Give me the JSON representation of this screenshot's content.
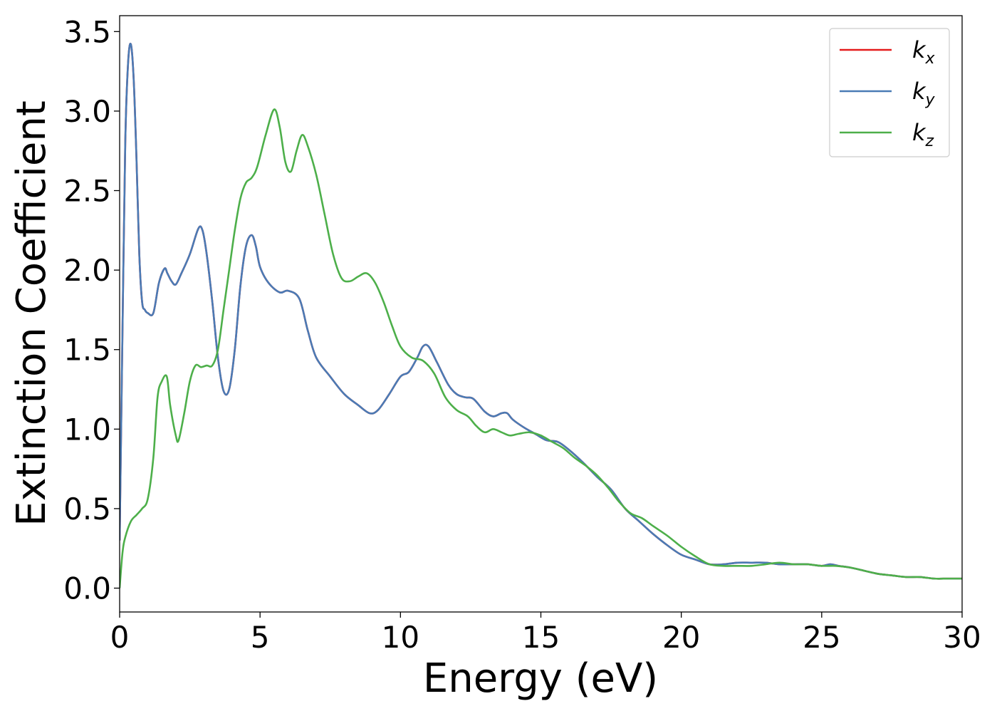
{
  "chart_data": {
    "type": "line",
    "title": "",
    "xlabel": "Energy (eV)",
    "ylabel": "Extinction Coefficient",
    "xlim": [
      0,
      30
    ],
    "ylim": [
      -0.15,
      3.6
    ],
    "xticks": [
      0,
      5,
      10,
      15,
      20,
      25,
      30
    ],
    "xtick_labels": [
      "0",
      "5",
      "10",
      "15",
      "20",
      "25",
      "30"
    ],
    "yticks": [
      0.0,
      0.5,
      1.0,
      1.5,
      2.0,
      2.5,
      3.0,
      3.5
    ],
    "ytick_labels": [
      "0.0",
      "0.5",
      "1.0",
      "1.5",
      "2.0",
      "2.5",
      "3.0",
      "3.5"
    ],
    "grid": false,
    "legend_position": "top-right",
    "series": [
      {
        "name": "k_x",
        "label_main": "k",
        "label_sub": "x",
        "color": "#e41a1c",
        "x": [
          0,
          0.1,
          0.2,
          0.3,
          0.4,
          0.5,
          0.6,
          0.7,
          0.8,
          0.9,
          1.0,
          1.2,
          1.4,
          1.6,
          1.7,
          1.85,
          2.0,
          2.2,
          2.5,
          2.8,
          2.95,
          3.1,
          3.3,
          3.5,
          3.7,
          3.9,
          4.1,
          4.3,
          4.5,
          4.7,
          4.85,
          5.0,
          5.3,
          5.7,
          6.0,
          6.4,
          6.7,
          7.0,
          7.5,
          8.0,
          8.5,
          8.9,
          9.2,
          9.6,
          10.0,
          10.3,
          10.6,
          10.8,
          11.0,
          11.3,
          11.7,
          12.0,
          12.3,
          12.6,
          13.0,
          13.3,
          13.6,
          13.8,
          14.0,
          14.4,
          14.8,
          15.2,
          15.6,
          16.0,
          16.5,
          17.0,
          17.5,
          18.0,
          18.5,
          19.0,
          19.5,
          20.0,
          20.5,
          21.0,
          21.5,
          22.0,
          22.5,
          23.0,
          23.5,
          24.0,
          24.5,
          25.0,
          25.3,
          25.6,
          26.0,
          26.5,
          27.0,
          27.5,
          28.0,
          28.5,
          29.0,
          29.5,
          30.0
        ],
        "y": [
          0.3,
          1.6,
          2.8,
          3.3,
          3.42,
          3.2,
          2.7,
          2.1,
          1.8,
          1.75,
          1.73,
          1.73,
          1.92,
          2.01,
          1.98,
          1.93,
          1.91,
          1.98,
          2.1,
          2.26,
          2.25,
          2.1,
          1.8,
          1.45,
          1.24,
          1.25,
          1.5,
          1.9,
          2.15,
          2.22,
          2.15,
          2.02,
          1.92,
          1.86,
          1.87,
          1.82,
          1.62,
          1.45,
          1.33,
          1.22,
          1.15,
          1.1,
          1.12,
          1.22,
          1.33,
          1.36,
          1.45,
          1.52,
          1.52,
          1.42,
          1.28,
          1.22,
          1.2,
          1.19,
          1.11,
          1.08,
          1.1,
          1.1,
          1.06,
          1.01,
          0.97,
          0.93,
          0.92,
          0.87,
          0.79,
          0.7,
          0.62,
          0.5,
          0.42,
          0.34,
          0.27,
          0.21,
          0.18,
          0.15,
          0.15,
          0.16,
          0.16,
          0.16,
          0.15,
          0.15,
          0.15,
          0.14,
          0.15,
          0.14,
          0.13,
          0.11,
          0.09,
          0.08,
          0.07,
          0.07,
          0.06,
          0.06,
          0.06
        ]
      },
      {
        "name": "k_y",
        "label_main": "k",
        "label_sub": "y",
        "color": "#4a7bb5",
        "x": [
          0,
          0.1,
          0.2,
          0.3,
          0.4,
          0.5,
          0.6,
          0.7,
          0.8,
          0.9,
          1.0,
          1.2,
          1.4,
          1.6,
          1.7,
          1.85,
          2.0,
          2.2,
          2.5,
          2.8,
          2.95,
          3.1,
          3.3,
          3.5,
          3.7,
          3.9,
          4.1,
          4.3,
          4.5,
          4.7,
          4.85,
          5.0,
          5.3,
          5.7,
          6.0,
          6.4,
          6.7,
          7.0,
          7.5,
          8.0,
          8.5,
          8.9,
          9.2,
          9.6,
          10.0,
          10.3,
          10.6,
          10.8,
          11.0,
          11.3,
          11.7,
          12.0,
          12.3,
          12.6,
          13.0,
          13.3,
          13.6,
          13.8,
          14.0,
          14.4,
          14.8,
          15.2,
          15.6,
          16.0,
          16.5,
          17.0,
          17.5,
          18.0,
          18.5,
          19.0,
          19.5,
          20.0,
          20.5,
          21.0,
          21.5,
          22.0,
          22.5,
          23.0,
          23.5,
          24.0,
          24.5,
          25.0,
          25.3,
          25.6,
          26.0,
          26.5,
          27.0,
          27.5,
          28.0,
          28.5,
          29.0,
          29.5,
          30.0
        ],
        "y": [
          0.3,
          1.6,
          2.8,
          3.3,
          3.42,
          3.2,
          2.7,
          2.1,
          1.8,
          1.75,
          1.73,
          1.73,
          1.92,
          2.01,
          1.98,
          1.93,
          1.91,
          1.98,
          2.1,
          2.26,
          2.25,
          2.1,
          1.8,
          1.45,
          1.24,
          1.25,
          1.5,
          1.9,
          2.15,
          2.22,
          2.15,
          2.02,
          1.92,
          1.86,
          1.87,
          1.82,
          1.62,
          1.45,
          1.33,
          1.22,
          1.15,
          1.1,
          1.12,
          1.22,
          1.33,
          1.36,
          1.45,
          1.52,
          1.52,
          1.42,
          1.28,
          1.22,
          1.2,
          1.19,
          1.11,
          1.08,
          1.1,
          1.1,
          1.06,
          1.01,
          0.97,
          0.93,
          0.92,
          0.87,
          0.79,
          0.7,
          0.62,
          0.5,
          0.42,
          0.34,
          0.27,
          0.21,
          0.18,
          0.15,
          0.15,
          0.16,
          0.16,
          0.16,
          0.15,
          0.15,
          0.15,
          0.14,
          0.15,
          0.14,
          0.13,
          0.11,
          0.09,
          0.08,
          0.07,
          0.07,
          0.06,
          0.06,
          0.06
        ]
      },
      {
        "name": "k_z",
        "label_main": "k",
        "label_sub": "z",
        "color": "#4daf4a",
        "x": [
          0,
          0.1,
          0.2,
          0.4,
          0.6,
          0.8,
          1.0,
          1.2,
          1.35,
          1.5,
          1.68,
          1.8,
          2.0,
          2.1,
          2.3,
          2.5,
          2.7,
          2.9,
          3.1,
          3.3,
          3.5,
          3.7,
          3.9,
          4.1,
          4.3,
          4.5,
          4.7,
          4.9,
          5.2,
          5.5,
          5.7,
          5.9,
          6.1,
          6.3,
          6.5,
          6.7,
          7.0,
          7.3,
          7.6,
          7.9,
          8.2,
          8.5,
          8.8,
          9.1,
          9.4,
          9.7,
          10.0,
          10.4,
          10.8,
          11.2,
          11.6,
          12.0,
          12.4,
          12.7,
          13.0,
          13.3,
          13.6,
          13.9,
          14.2,
          14.6,
          15.0,
          15.4,
          15.8,
          16.2,
          16.6,
          17.0,
          17.4,
          17.8,
          18.2,
          18.6,
          19.0,
          19.5,
          20.0,
          20.5,
          21.0,
          21.5,
          22.0,
          22.5,
          23.0,
          23.5,
          24.0,
          24.5,
          25.0,
          25.5,
          26.0,
          26.5,
          27.0,
          27.5,
          28.0,
          28.5,
          29.0,
          29.5,
          30.0
        ],
        "y": [
          0.0,
          0.22,
          0.32,
          0.42,
          0.46,
          0.5,
          0.56,
          0.82,
          1.2,
          1.3,
          1.33,
          1.15,
          0.96,
          0.93,
          1.1,
          1.3,
          1.4,
          1.39,
          1.4,
          1.4,
          1.5,
          1.75,
          2.0,
          2.25,
          2.45,
          2.55,
          2.58,
          2.65,
          2.85,
          3.01,
          2.9,
          2.68,
          2.62,
          2.75,
          2.85,
          2.78,
          2.6,
          2.35,
          2.1,
          1.95,
          1.93,
          1.96,
          1.98,
          1.92,
          1.8,
          1.65,
          1.52,
          1.45,
          1.43,
          1.35,
          1.2,
          1.12,
          1.08,
          1.02,
          0.98,
          1.0,
          0.98,
          0.96,
          0.97,
          0.98,
          0.96,
          0.92,
          0.88,
          0.82,
          0.77,
          0.71,
          0.63,
          0.54,
          0.47,
          0.44,
          0.39,
          0.33,
          0.26,
          0.2,
          0.15,
          0.14,
          0.14,
          0.14,
          0.15,
          0.16,
          0.15,
          0.15,
          0.14,
          0.14,
          0.13,
          0.11,
          0.09,
          0.08,
          0.07,
          0.07,
          0.06,
          0.06,
          0.06
        ]
      }
    ]
  }
}
